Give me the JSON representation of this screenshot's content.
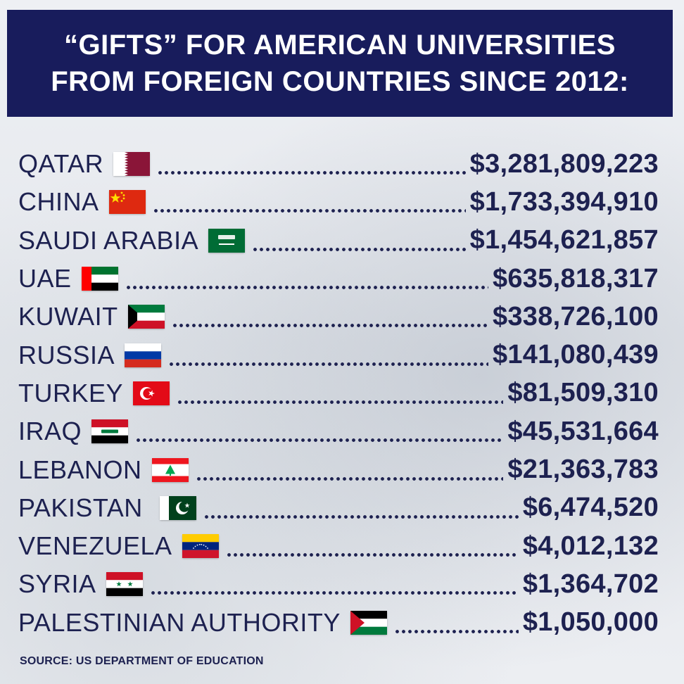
{
  "title": {
    "line1": "“GIFTS” FOR AMERICAN UNIVERSITIES",
    "line2": "FROM FOREIGN COUNTRIES SINCE 2012:"
  },
  "rows": [
    {
      "country": "QATAR",
      "amount": "$3,281,809,223",
      "flag": "qatar-flag-icon"
    },
    {
      "country": "CHINA",
      "amount": "$1,733,394,910",
      "flag": "china-flag-icon"
    },
    {
      "country": "SAUDI ARABIA",
      "amount": "$1,454,621,857",
      "flag": "saudi-arabia-flag-icon"
    },
    {
      "country": "UAE",
      "amount": "$635,818,317",
      "flag": "uae-flag-icon"
    },
    {
      "country": "KUWAIT",
      "amount": "$338,726,100",
      "flag": "kuwait-flag-icon"
    },
    {
      "country": "RUSSIA",
      "amount": "$141,080,439",
      "flag": "russia-flag-icon"
    },
    {
      "country": "TURKEY",
      "amount": "$81,509,310",
      "flag": "turkey-flag-icon"
    },
    {
      "country": "IRAQ",
      "amount": "$45,531,664",
      "flag": "iraq-flag-icon"
    },
    {
      "country": "LEBANON",
      "amount": "$21,363,783",
      "flag": "lebanon-flag-icon"
    },
    {
      "country": "PAKISTAN",
      "amount": "$6,474,520",
      "flag": "pakistan-flag-icon"
    },
    {
      "country": "VENEZUELA",
      "amount": "$4,012,132",
      "flag": "venezuela-flag-icon"
    },
    {
      "country": "SYRIA",
      "amount": "$1,364,702",
      "flag": "syria-flag-icon"
    },
    {
      "country": "PALESTINIAN AUTHORITY",
      "amount": "$1,050,000",
      "flag": "palestine-flag-icon"
    }
  ],
  "source": "SOURCE: US DEPARTMENT OF EDUCATION",
  "colors": {
    "navy": "#181c5c",
    "text": "#1d2150",
    "background": "#e9ebf0"
  }
}
